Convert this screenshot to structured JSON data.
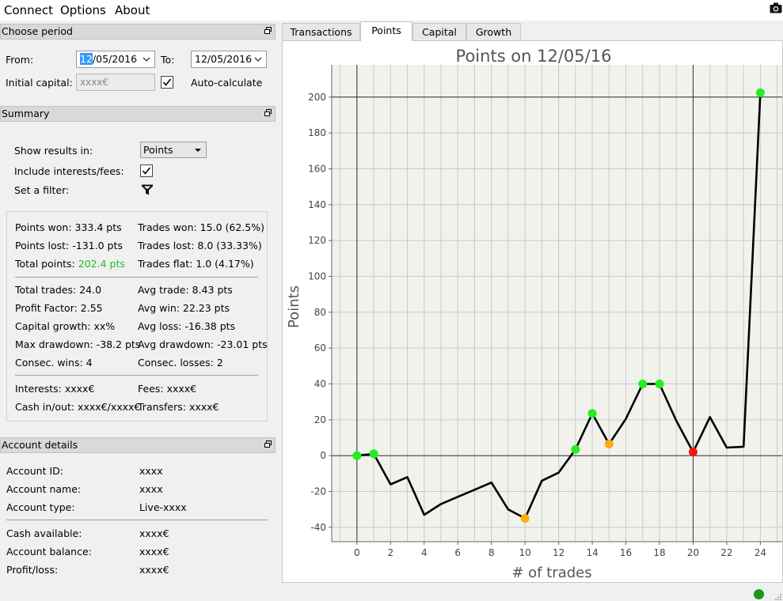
{
  "menu": {
    "connect": "Connect",
    "options": "Options",
    "about": "About"
  },
  "period": {
    "title": "Choose period",
    "from_label": "From:",
    "from_day": "12",
    "from_rest": "/05/2016",
    "to_label": "To:",
    "to_value": "12/05/2016",
    "capital_label": "Initial capital:",
    "capital_value": "xxxx€",
    "auto_label": "Auto-calculate"
  },
  "summary": {
    "title": "Summary",
    "show_label": "Show results in:",
    "show_value": "Points",
    "interests_label": "Include interests/fees:",
    "filter_label": "Set a filter:",
    "stats": {
      "points_won": "Points won: 333.4 pts",
      "trades_won": "Trades won: 15.0 (62.5%)",
      "points_lost": "Points lost: -131.0 pts",
      "trades_lost": "Trades lost: 8.0 (33.33%)",
      "total_points_label": "Total points: ",
      "total_points_value": "202.4 pts",
      "trades_flat": "Trades flat: 1.0 (4.17%)",
      "total_trades": "Total trades: 24.0",
      "avg_trade": "Avg trade: 8.43 pts",
      "profit_factor": "Profit Factor: 2.55",
      "avg_win": "Avg win: 22.23 pts",
      "capital_growth": "Capital growth: xx%",
      "avg_loss": "Avg loss: -16.38 pts",
      "max_drawdown": "Max drawdown: -38.2 pts",
      "avg_drawdown": "Avg drawdown: -23.01 pts",
      "consec_wins": "Consec. wins: 4",
      "consec_losses": "Consec. losses: 2",
      "interests": "Interests: xxxx€",
      "fees": "Fees: xxxx€",
      "cash_inout": "Cash in/out: xxxx€/xxxx€",
      "transfers": "Transfers: xxxx€"
    }
  },
  "account": {
    "title": "Account details",
    "id_label": "Account ID:",
    "id_value": "xxxx",
    "name_label": "Account name:",
    "name_value": "xxxx",
    "type_label": "Account type:",
    "type_value": "Live-xxxx",
    "cash_label": "Cash available:",
    "cash_value": "xxxx€",
    "balance_label": "Account balance:",
    "balance_value": "xxxx€",
    "pl_label": "Profit/loss:",
    "pl_value": "xxxx€"
  },
  "tabs": [
    "Transactions",
    "Points",
    "Capital",
    "Growth"
  ],
  "colors": {
    "win": "#22ee22",
    "loss": "#ffaa11",
    "drawdown": "#ff1111",
    "line": "#000000",
    "status": "#1a9a1a"
  },
  "icons": {
    "camera": "camera-icon",
    "restore": "restore-icon",
    "filter": "filter-icon",
    "status": "status-dot-icon"
  },
  "chart_data": {
    "type": "line",
    "title": "Points on 12/05/16",
    "xlabel": "# of trades",
    "ylabel": "Points",
    "xlim": [
      -1.5,
      25.3
    ],
    "ylim": [
      -48,
      218
    ],
    "xticks": [
      0,
      2,
      4,
      6,
      8,
      10,
      12,
      14,
      16,
      18,
      20,
      22,
      24
    ],
    "yticks": [
      -40,
      -20,
      0,
      20,
      40,
      60,
      80,
      100,
      120,
      140,
      160,
      180,
      200
    ],
    "grid": true,
    "x": [
      0,
      1,
      2,
      3,
      4,
      5,
      6,
      7,
      8,
      9,
      10,
      11,
      12,
      13,
      14,
      15,
      16,
      17,
      18,
      19,
      20,
      21,
      22,
      23,
      24
    ],
    "y": [
      0,
      1,
      -16,
      -12,
      -33,
      -27,
      -23,
      -19,
      -15,
      -30,
      -35,
      -14,
      -9.5,
      3.5,
      23.5,
      6.5,
      20.5,
      40,
      40,
      19.5,
      2,
      21.5,
      4.5,
      5,
      202.4
    ],
    "markers": [
      {
        "x": 0,
        "y": 0,
        "kind": "win"
      },
      {
        "x": 1,
        "y": 1,
        "kind": "win"
      },
      {
        "x": 10,
        "y": -35,
        "kind": "loss"
      },
      {
        "x": 13,
        "y": 3.5,
        "kind": "win"
      },
      {
        "x": 14,
        "y": 23.5,
        "kind": "win"
      },
      {
        "x": 15,
        "y": 6.5,
        "kind": "loss"
      },
      {
        "x": 17,
        "y": 40,
        "kind": "win"
      },
      {
        "x": 18,
        "y": 40,
        "kind": "win"
      },
      {
        "x": 20,
        "y": 2,
        "kind": "drawdown"
      },
      {
        "x": 24,
        "y": 202.4,
        "kind": "win"
      }
    ],
    "vlines": [
      0,
      20
    ],
    "hlines": [
      0,
      200
    ]
  }
}
